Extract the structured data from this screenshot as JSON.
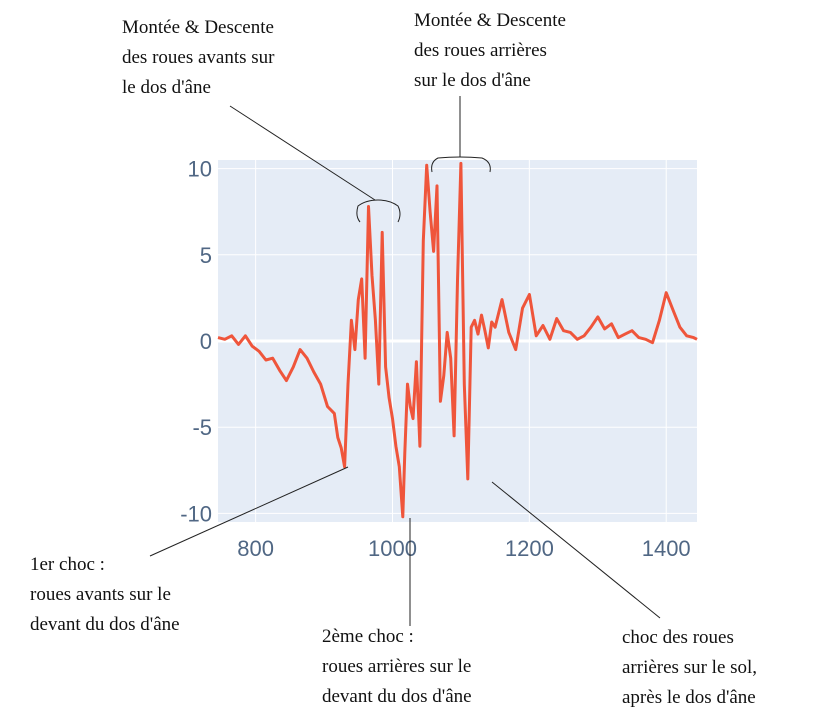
{
  "chart_data": {
    "type": "line",
    "title": "",
    "xlabel": "",
    "ylabel": "",
    "xlim": [
      745,
      1445
    ],
    "ylim": [
      -10.5,
      10.5
    ],
    "x_ticks": [
      800,
      1000,
      1200,
      1400
    ],
    "y_ticks": [
      10,
      5,
      0,
      -5,
      -10
    ],
    "x_tick_labels": [
      "800",
      "1000",
      "1200",
      "1400"
    ],
    "y_tick_labels": [
      "10",
      "5",
      "0",
      "-5",
      "-10"
    ],
    "grid": true,
    "legend": "none",
    "colors": {
      "line": "#ef553b",
      "plot_bg": "#e5ecf6",
      "grid": "#ffffff",
      "tick_text": "#506784",
      "annotation": "#111111"
    },
    "series": [
      {
        "x": [
          745,
          755,
          765,
          775,
          785,
          795,
          805,
          815,
          825,
          835,
          845,
          855,
          865,
          875,
          885,
          895,
          905,
          915,
          920,
          925,
          930,
          935,
          940,
          945,
          950,
          955,
          960,
          965,
          970,
          975,
          980,
          985,
          990,
          995,
          1000,
          1005,
          1010,
          1015,
          1018,
          1022,
          1026,
          1030,
          1035,
          1040,
          1045,
          1050,
          1055,
          1060,
          1065,
          1070,
          1075,
          1080,
          1085,
          1090,
          1095,
          1100,
          1105,
          1110,
          1115,
          1120,
          1125,
          1130,
          1135,
          1140,
          1145,
          1150,
          1160,
          1170,
          1180,
          1190,
          1200,
          1210,
          1220,
          1230,
          1240,
          1250,
          1260,
          1270,
          1280,
          1290,
          1300,
          1310,
          1320,
          1330,
          1340,
          1350,
          1360,
          1370,
          1380,
          1390,
          1400,
          1410,
          1420,
          1430,
          1440,
          1445
        ],
        "y": [
          0.2,
          0.1,
          0.3,
          -0.2,
          0.3,
          -0.3,
          -0.6,
          -1.1,
          -1.0,
          -1.7,
          -2.3,
          -1.5,
          -0.5,
          -1.0,
          -1.8,
          -2.5,
          -3.8,
          -4.2,
          -5.6,
          -6.2,
          -7.3,
          -2.5,
          1.2,
          -0.5,
          2.4,
          3.6,
          -1.0,
          7.8,
          3.8,
          1.2,
          -2.5,
          6.3,
          -1.5,
          -3.3,
          -4.5,
          -6.1,
          -7.3,
          -10.2,
          -6.5,
          -2.5,
          -3.8,
          -4.5,
          -1.2,
          -6.1,
          5.8,
          10.2,
          7.5,
          5.2,
          9.0,
          -3.5,
          -2.0,
          0.5,
          -1.0,
          -5.5,
          3.5,
          10.3,
          -2.5,
          -8.0,
          0.8,
          1.2,
          0.4,
          1.5,
          0.6,
          -0.4,
          1.1,
          0.8,
          2.4,
          0.5,
          -0.5,
          1.9,
          2.7,
          0.3,
          0.9,
          0.1,
          1.3,
          0.6,
          0.5,
          0.1,
          0.3,
          0.8,
          1.4,
          0.7,
          1.0,
          0.2,
          0.4,
          0.6,
          0.2,
          0.1,
          -0.1,
          1.2,
          2.8,
          1.8,
          0.8,
          0.3,
          0.2,
          0.1
        ]
      }
    ],
    "annotations": [
      {
        "id": "front-rise",
        "lines": [
          "Montée & Descente",
          "des roues avants sur",
          "le dos d'âne"
        ]
      },
      {
        "id": "rear-rise",
        "lines": [
          "Montée & Descente",
          "des roues arrières",
          "sur le dos d'âne"
        ]
      },
      {
        "id": "first-shock",
        "lines": [
          "1er choc :",
          "roues avants sur le",
          "devant du dos d'âne"
        ]
      },
      {
        "id": "second-shock",
        "lines": [
          "2ème choc :",
          "roues arrières sur le",
          "devant du dos d'âne"
        ]
      },
      {
        "id": "ground-shock",
        "lines": [
          "choc des roues",
          "arrières sur le sol,",
          "après le dos d'âne"
        ]
      }
    ]
  }
}
